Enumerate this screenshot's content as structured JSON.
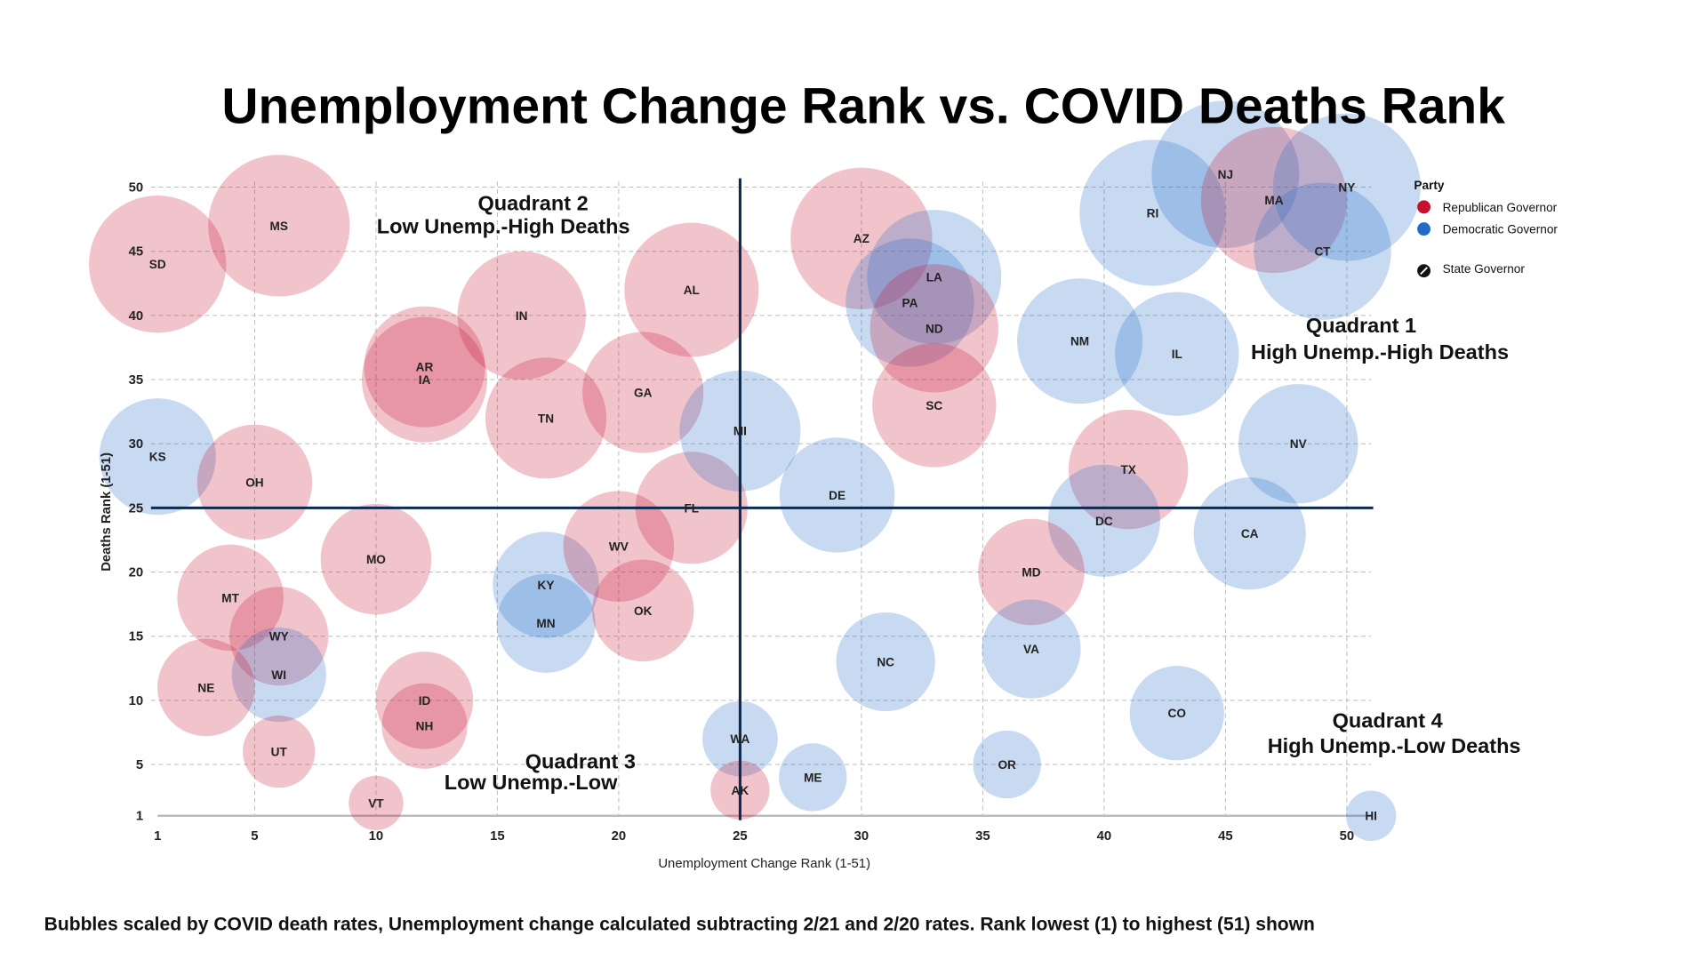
{
  "chart_data": {
    "type": "scatter",
    "title": "Unemployment Change Rank vs. COVID Deaths Rank",
    "xlabel": "Unemployment Change Rank (1-51)",
    "ylabel": "Deaths Rank (1-51)",
    "xlim": [
      1,
      51
    ],
    "ylim": [
      1,
      51
    ],
    "x_ticks": [
      1,
      5,
      10,
      15,
      20,
      25,
      30,
      35,
      40,
      45,
      50
    ],
    "y_ticks": [
      1,
      5,
      10,
      15,
      20,
      25,
      30,
      35,
      40,
      45,
      50
    ],
    "grid": true,
    "reference_lines": {
      "x": 25,
      "y": 25
    },
    "legend": {
      "title": "Party",
      "position": "top-right",
      "items": [
        {
          "label": "Republican Governor",
          "color": "#c8102e"
        },
        {
          "label": "Democratic Governor",
          "color": "#1f6cc8"
        },
        {
          "label": "State Governor",
          "icon": "pen-circle-icon"
        }
      ]
    },
    "quadrants": [
      {
        "line1": "Quadrant 1",
        "line2": "High Unemp.-High Deaths"
      },
      {
        "line1": "Quadrant 2",
        "line2": "Low Unemp.-High Deaths"
      },
      {
        "line1": "Quadrant 3",
        "line2": "Low Unemp.-Low"
      },
      {
        "line1": "Quadrant 4",
        "line2": "High Unemp.-Low Deaths"
      }
    ],
    "colors": {
      "R": "#c8102e",
      "D": "#1f6cc8",
      "reference_line": "#0d2b4e"
    },
    "bubble_size_note": "relative bubble size (death rate), 0-1",
    "points": [
      {
        "state": "SD",
        "x": 1,
        "y": 44,
        "size": 0.93,
        "party": "R"
      },
      {
        "state": "MS",
        "x": 6,
        "y": 47,
        "size": 0.96,
        "party": "R"
      },
      {
        "state": "KS",
        "x": 1,
        "y": 29,
        "size": 0.79,
        "party": "D"
      },
      {
        "state": "OH",
        "x": 5,
        "y": 27,
        "size": 0.78,
        "party": "R"
      },
      {
        "state": "MT",
        "x": 4,
        "y": 18,
        "size": 0.72,
        "party": "R"
      },
      {
        "state": "WY",
        "x": 6,
        "y": 15,
        "size": 0.67,
        "party": "R"
      },
      {
        "state": "WI",
        "x": 6,
        "y": 12,
        "size": 0.64,
        "party": "D"
      },
      {
        "state": "NE",
        "x": 3,
        "y": 11,
        "size": 0.66,
        "party": "R"
      },
      {
        "state": "UT",
        "x": 6,
        "y": 6,
        "size": 0.49,
        "party": "R"
      },
      {
        "state": "VT",
        "x": 10,
        "y": 2,
        "size": 0.37,
        "party": "R"
      },
      {
        "state": "MO",
        "x": 10,
        "y": 21,
        "size": 0.75,
        "party": "R"
      },
      {
        "state": "ID",
        "x": 12,
        "y": 10,
        "size": 0.66,
        "party": "R"
      },
      {
        "state": "NH",
        "x": 12,
        "y": 8,
        "size": 0.58,
        "party": "R"
      },
      {
        "state": "AR",
        "x": 12,
        "y": 36,
        "size": 0.82,
        "party": "R"
      },
      {
        "state": "IA",
        "x": 12,
        "y": 35,
        "size": 0.85,
        "party": "R"
      },
      {
        "state": "IN",
        "x": 16,
        "y": 40,
        "size": 0.87,
        "party": "R"
      },
      {
        "state": "TN",
        "x": 17,
        "y": 32,
        "size": 0.82,
        "party": "R"
      },
      {
        "state": "KY",
        "x": 17,
        "y": 19,
        "size": 0.72,
        "party": "D"
      },
      {
        "state": "MN",
        "x": 17,
        "y": 16,
        "size": 0.67,
        "party": "D"
      },
      {
        "state": "GA",
        "x": 21,
        "y": 34,
        "size": 0.82,
        "party": "R"
      },
      {
        "state": "WV",
        "x": 20,
        "y": 22,
        "size": 0.75,
        "party": "R"
      },
      {
        "state": "OK",
        "x": 21,
        "y": 17,
        "size": 0.69,
        "party": "R"
      },
      {
        "state": "AL",
        "x": 23,
        "y": 42,
        "size": 0.91,
        "party": "R"
      },
      {
        "state": "FL",
        "x": 23,
        "y": 25,
        "size": 0.76,
        "party": "R"
      },
      {
        "state": "MI",
        "x": 25,
        "y": 31,
        "size": 0.82,
        "party": "D"
      },
      {
        "state": "WA",
        "x": 25,
        "y": 7,
        "size": 0.51,
        "party": "D"
      },
      {
        "state": "AK",
        "x": 25,
        "y": 3,
        "size": 0.4,
        "party": "R"
      },
      {
        "state": "ME",
        "x": 28,
        "y": 4,
        "size": 0.46,
        "party": "D"
      },
      {
        "state": "AZ",
        "x": 30,
        "y": 46,
        "size": 0.96,
        "party": "R"
      },
      {
        "state": "DE",
        "x": 29,
        "y": 26,
        "size": 0.78,
        "party": "D"
      },
      {
        "state": "LA",
        "x": 33,
        "y": 43,
        "size": 0.91,
        "party": "D"
      },
      {
        "state": "PA",
        "x": 32,
        "y": 41,
        "size": 0.87,
        "party": "D"
      },
      {
        "state": "ND",
        "x": 33,
        "y": 39,
        "size": 0.87,
        "party": "R"
      },
      {
        "state": "SC",
        "x": 33,
        "y": 33,
        "size": 0.84,
        "party": "R"
      },
      {
        "state": "NC",
        "x": 31,
        "y": 13,
        "size": 0.67,
        "party": "D"
      },
      {
        "state": "NM",
        "x": 39,
        "y": 38,
        "size": 0.85,
        "party": "D"
      },
      {
        "state": "IL",
        "x": 43,
        "y": 37,
        "size": 0.84,
        "party": "D"
      },
      {
        "state": "TX",
        "x": 41,
        "y": 28,
        "size": 0.81,
        "party": "R"
      },
      {
        "state": "DC",
        "x": 40,
        "y": 24,
        "size": 0.76,
        "party": "D"
      },
      {
        "state": "MD",
        "x": 37,
        "y": 20,
        "size": 0.72,
        "party": "R"
      },
      {
        "state": "VA",
        "x": 37,
        "y": 14,
        "size": 0.67,
        "party": "D"
      },
      {
        "state": "OR",
        "x": 36,
        "y": 5,
        "size": 0.46,
        "party": "D"
      },
      {
        "state": "CO",
        "x": 43,
        "y": 9,
        "size": 0.64,
        "party": "D"
      },
      {
        "state": "CA",
        "x": 46,
        "y": 23,
        "size": 0.76,
        "party": "D"
      },
      {
        "state": "NV",
        "x": 48,
        "y": 30,
        "size": 0.81,
        "party": "D"
      },
      {
        "state": "HI",
        "x": 51,
        "y": 1,
        "size": 0.34,
        "party": "D"
      },
      {
        "state": "RI",
        "x": 42,
        "y": 48,
        "size": 0.99,
        "party": "D"
      },
      {
        "state": "NJ",
        "x": 45,
        "y": 51,
        "size": 1.0,
        "party": "D"
      },
      {
        "state": "MA",
        "x": 47,
        "y": 49,
        "size": 0.99,
        "party": "R"
      },
      {
        "state": "NY",
        "x": 50,
        "y": 50,
        "size": 1.0,
        "party": "D"
      },
      {
        "state": "CT",
        "x": 49,
        "y": 45,
        "size": 0.93,
        "party": "D"
      }
    ]
  },
  "footnote": "Bubbles scaled by COVID death rates, Unemployment change calculated subtracting 2/21 and 2/20 rates. Rank lowest (1) to highest (51) shown"
}
